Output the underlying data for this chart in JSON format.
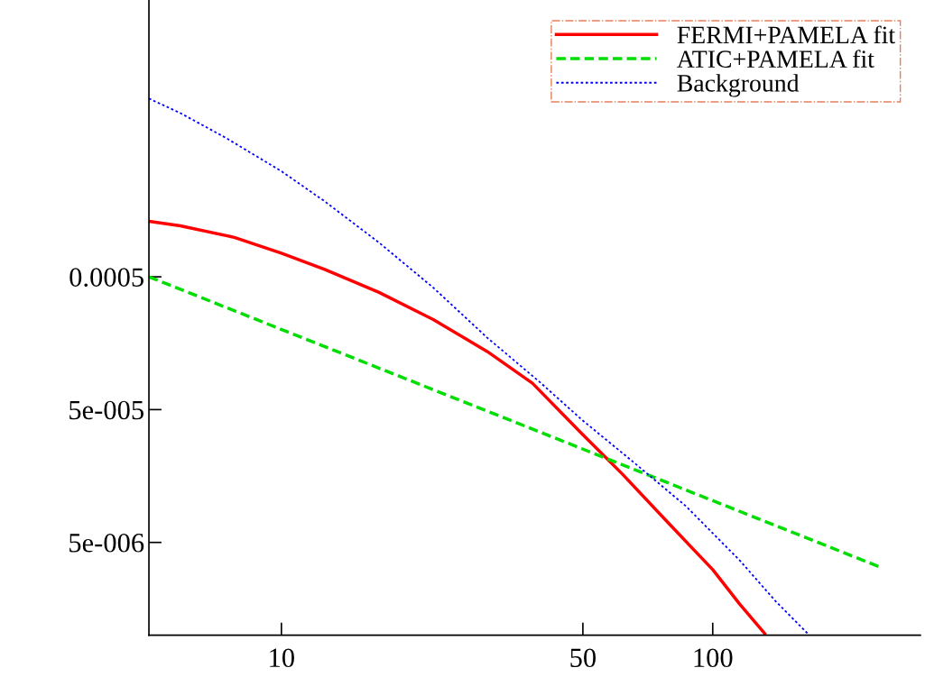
{
  "chart_data": {
    "type": "line",
    "log": "xy",
    "legend": "top right",
    "grid": false,
    "marker": "none",
    "xlim": [
      4.93,
      303
    ],
    "ylim": [
      1e-06,
      0.06
    ],
    "xticks": [
      10,
      50,
      100
    ],
    "yticks": [
      0.0005,
      {
        "value": 5e-05,
        "label": "5e-005"
      },
      {
        "value": 5e-06,
        "label": "5e-006"
      }
    ],
    "series": [
      {
        "name": "FERMI+PAMELA fit",
        "color": "#ff0000",
        "line_style": "solid",
        "x": [
          4.93,
          5.83,
          7.78,
          10,
          12.6,
          16.8,
          22.5,
          30.0,
          38.2,
          49.7,
          61.8,
          78.6,
          100,
          115.6,
          132
        ],
        "values": [
          0.00131,
          0.00121,
          0.00099,
          0.000753,
          0.000568,
          0.000383,
          0.000238,
          0.000137,
          7.9e-05,
          3.3e-05,
          1.63e-05,
          7.1e-06,
          3.12e-06,
          1.71e-06,
          1.03e-06
        ]
      },
      {
        "name": "ATIC+PAMELA fit",
        "color": "#00dd00",
        "line_style": "dashed",
        "x": [
          4.93,
          243.8
        ],
        "values": [
          0.0005,
          3.27e-06
        ]
      },
      {
        "name": "Background",
        "color": "#0000ff",
        "line_style": "dotted",
        "x": [
          4.93,
          5.83,
          7.42,
          10,
          12.6,
          16.8,
          22.5,
          30.0,
          40.0,
          49.7,
          64.8,
          86.6,
          115.6,
          140,
          166
        ],
        "values": [
          0.011,
          0.00855,
          0.00558,
          0.00312,
          0.00185,
          0.00091,
          0.000414,
          0.000174,
          7.9e-05,
          4.2e-05,
          2.07e-05,
          9.4e-06,
          3.65e-06,
          1.8e-06,
          1.03e-06
        ]
      }
    ]
  }
}
